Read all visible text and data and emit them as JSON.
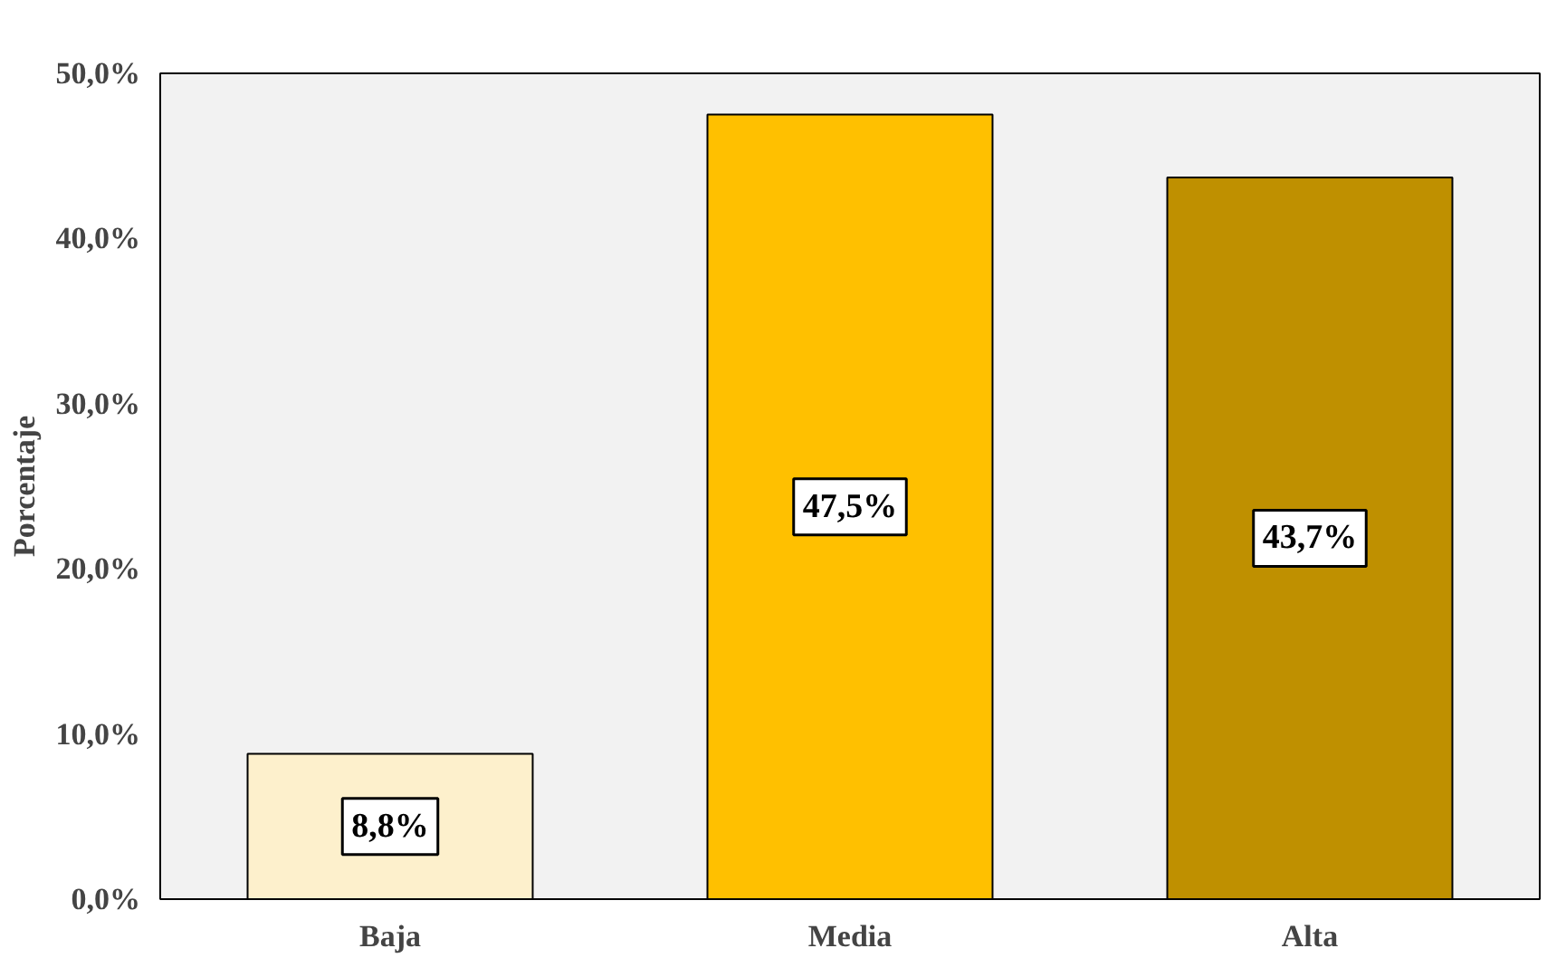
{
  "chart_data": {
    "type": "bar",
    "ylabel": "Porcentaje",
    "categories": [
      "Baja",
      "Media",
      "Alta"
    ],
    "values": [
      8.8,
      47.5,
      43.7
    ],
    "colors": [
      "#fdf0cc",
      "#ffc000",
      "#bf9000"
    ],
    "value_labels": [
      "8,8%",
      "47,5%",
      "43,7%"
    ],
    "ylim": [
      0,
      50
    ],
    "yticks": [
      {
        "value": 0,
        "label": "0,0%"
      },
      {
        "value": 10,
        "label": "10,0%"
      },
      {
        "value": 20,
        "label": "20,0%"
      },
      {
        "value": 30,
        "label": "30,0%"
      },
      {
        "value": 40,
        "label": "40,0%"
      },
      {
        "value": 50,
        "label": "50,0%"
      }
    ],
    "grid": false
  }
}
